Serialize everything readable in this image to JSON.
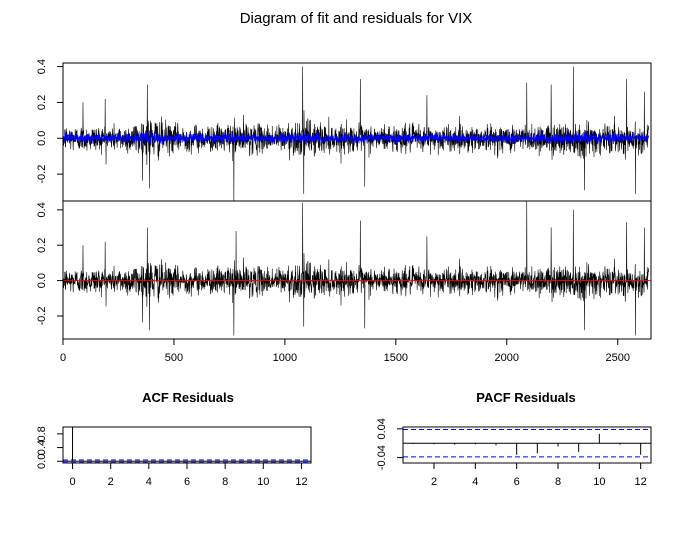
{
  "title": "Diagram of fit and residuals for VIX",
  "chart_data": [
    {
      "type": "line",
      "panel": "fit",
      "title": "Diagram of fit and residuals for VIX",
      "xlim": [
        0,
        2650
      ],
      "ylim": [
        -0.35,
        0.42
      ],
      "x_ticks": [
        0,
        500,
        1000,
        1500,
        2000,
        2500
      ],
      "y_ticks": [
        -0.2,
        0.0,
        0.2,
        0.4
      ],
      "y_tick_labels": [
        "-0.2",
        "0.0",
        "0.2",
        "0.4"
      ],
      "n": 2640,
      "series": [
        {
          "color": "#000000",
          "peaks": [
            [
              90,
              0.2
            ],
            [
              190,
              0.22
            ],
            [
              380,
              0.3
            ],
            [
              390,
              -0.28
            ],
            [
              770,
              -0.35
            ],
            [
              1080,
              0.4
            ],
            [
              1085,
              -0.31
            ],
            [
              1340,
              0.33
            ],
            [
              1360,
              -0.27
            ],
            [
              1640,
              0.24
            ],
            [
              2090,
              0.31
            ],
            [
              2200,
              0.3
            ],
            [
              2300,
              0.4
            ],
            [
              2350,
              -0.29
            ],
            [
              2540,
              0.33
            ],
            [
              2580,
              -0.31
            ],
            [
              2620,
              0.26
            ]
          ]
        },
        {
          "color": "#0000ff",
          "amplitude": 0.03
        }
      ]
    },
    {
      "type": "line",
      "panel": "residuals",
      "xlim": [
        0,
        2650
      ],
      "ylim": [
        -0.33,
        0.45
      ],
      "x_ticks": [
        0,
        500,
        1000,
        1500,
        2000,
        2500
      ],
      "x_tick_labels": [
        "0",
        "500",
        "1000",
        "1500",
        "2000",
        "2500"
      ],
      "y_ticks": [
        -0.2,
        0.0,
        0.2,
        0.4
      ],
      "y_tick_labels": [
        "-0.2",
        "0.0",
        "0.2",
        "0.4"
      ],
      "hline": {
        "y": 0.0,
        "color": "#ff0000"
      },
      "series": [
        {
          "color": "#000000",
          "peaks": [
            [
              90,
              0.2
            ],
            [
              190,
              0.22
            ],
            [
              380,
              0.3
            ],
            [
              390,
              -0.28
            ],
            [
              770,
              -0.31
            ],
            [
              780,
              0.28
            ],
            [
              1080,
              0.44
            ],
            [
              1085,
              -0.26
            ],
            [
              1340,
              0.34
            ],
            [
              1360,
              -0.27
            ],
            [
              1640,
              0.25
            ],
            [
              2090,
              0.45
            ],
            [
              2200,
              0.3
            ],
            [
              2300,
              0.4
            ],
            [
              2350,
              -0.28
            ],
            [
              2540,
              0.33
            ],
            [
              2580,
              -0.31
            ],
            [
              2620,
              0.3
            ]
          ]
        }
      ]
    },
    {
      "type": "bar",
      "panel": "acf",
      "title": "ACF Residuals",
      "lags": [
        0,
        1,
        2,
        3,
        4,
        5,
        6,
        7,
        8,
        9,
        10,
        11,
        12
      ],
      "values": [
        1.0,
        0.01,
        -0.01,
        0.0,
        0.01,
        -0.01,
        0.0,
        0.01,
        0.0,
        -0.01,
        0.01,
        0.0,
        -0.01
      ],
      "xlim": [
        -0.5,
        12.5
      ],
      "ylim": [
        -0.05,
        1.0
      ],
      "x_ticks": [
        0,
        2,
        4,
        6,
        8,
        10,
        12
      ],
      "x_tick_labels": [
        "0",
        "2",
        "4",
        "6",
        "8",
        "10",
        "12"
      ],
      "y_ticks": [
        0.0,
        0.4,
        0.8
      ],
      "y_tick_labels": [
        "0.0",
        "0.4",
        "0.8"
      ],
      "ci": 0.038
    },
    {
      "type": "bar",
      "panel": "pacf",
      "title": "PACF Residuals",
      "lags": [
        1,
        2,
        3,
        4,
        5,
        6,
        7,
        8,
        9,
        10,
        11,
        12
      ],
      "values": [
        -0.002,
        -0.003,
        -0.004,
        -0.003,
        -0.006,
        -0.032,
        -0.028,
        -0.009,
        -0.024,
        0.026,
        -0.004,
        -0.032
      ],
      "xlim": [
        0.5,
        12.5
      ],
      "ylim": [
        -0.055,
        0.045
      ],
      "x_ticks": [
        2,
        4,
        6,
        8,
        10,
        12
      ],
      "x_tick_labels": [
        "2",
        "4",
        "6",
        "8",
        "10",
        "12"
      ],
      "y_ticks": [
        -0.04,
        0.04
      ],
      "y_tick_labels": [
        "-0.04",
        "0.04"
      ],
      "ci": 0.038
    }
  ]
}
